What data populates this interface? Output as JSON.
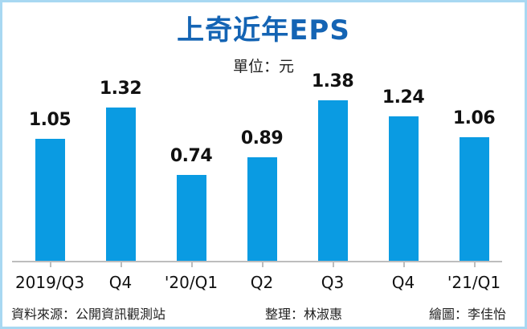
{
  "chart_data": {
    "type": "bar",
    "title": "上奇近年EPS",
    "unit": "單位：元",
    "categories": [
      "2019/Q3",
      "Q4",
      "'20/Q1",
      "Q2",
      "Q3",
      "Q4",
      "'21/Q1"
    ],
    "values": [
      1.05,
      1.32,
      0.74,
      0.89,
      1.38,
      1.24,
      1.06
    ],
    "value_labels": [
      "1.05",
      "1.32",
      "0.74",
      "0.89",
      "1.38",
      "1.24",
      "1.06"
    ],
    "xlabel": "",
    "ylabel": "",
    "ylim": [
      0,
      1.5
    ],
    "grid": false,
    "legend": "none",
    "bar_color": "#0a9be2",
    "title_color": "#1464b4"
  },
  "footer": {
    "source": "資料來源：公開資訊觀測站",
    "editor": "整理：林淑惠",
    "illustrator": "繪圖：李佳怡"
  }
}
